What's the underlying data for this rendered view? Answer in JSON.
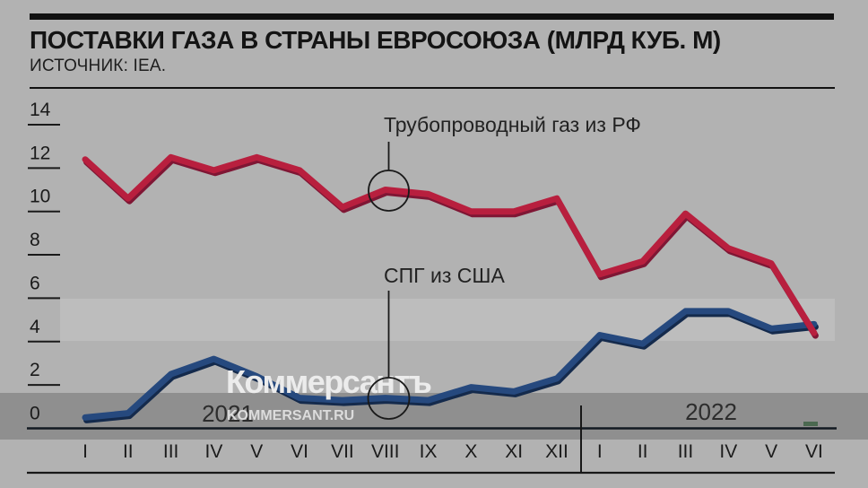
{
  "header": {
    "title": "ПОСТАВКИ ГАЗА В СТРАНЫ ЕВРОСОЮЗА (МЛРД КУБ. М)",
    "source": "ИСТОЧНИК: IEA."
  },
  "watermark": {
    "brand": "Коммерсантъ",
    "site": "KOMMERSANT.RU"
  },
  "colors": {
    "background": "#b2b2b2",
    "band_light": "#bdbdbd",
    "band_dark": "#8f8f8f",
    "axis_line": "#131a22",
    "rule_line": "#181818",
    "text": "#1a1a1a",
    "accent_green": "#4b6950"
  },
  "chart_data": {
    "type": "line",
    "title": "ПОСТАВКИ ГАЗА В СТРАНЫ ЕВРОСОЮЗА (МЛРД КУБ. М)",
    "xlabel": "",
    "ylabel": "млрд куб. м",
    "ylim": [
      0,
      14
    ],
    "y_ticks": [
      0,
      2,
      4,
      6,
      8,
      10,
      12,
      14
    ],
    "grid": "band-stripes",
    "legend_position": "callout-annotations",
    "x_labels": [
      "I",
      "II",
      "III",
      "IV",
      "V",
      "VI",
      "VII",
      "VIII",
      "IX",
      "X",
      "XI",
      "XII",
      "I",
      "II",
      "III",
      "IV",
      "V",
      "VI"
    ],
    "year_labels": [
      "2021",
      "2022"
    ],
    "annotated_month_index": 7,
    "series": [
      {
        "name": "Трубопроводный газ из РФ",
        "color": "#b81f3e",
        "shadow_color": "#7f1634",
        "values": [
          12.4,
          10.6,
          12.5,
          11.9,
          12.5,
          11.9,
          10.2,
          11.0,
          10.8,
          10.0,
          10.0,
          10.6,
          7.1,
          7.7,
          9.9,
          8.3,
          7.6,
          4.4
        ]
      },
      {
        "name": "СПГ из США",
        "color": "#26497e",
        "shadow_color": "#142a4c",
        "values": [
          0.5,
          0.7,
          2.5,
          3.2,
          2.4,
          1.4,
          1.3,
          1.4,
          1.3,
          1.9,
          1.7,
          2.3,
          4.3,
          3.9,
          5.4,
          5.4,
          4.6,
          4.8
        ]
      }
    ]
  }
}
